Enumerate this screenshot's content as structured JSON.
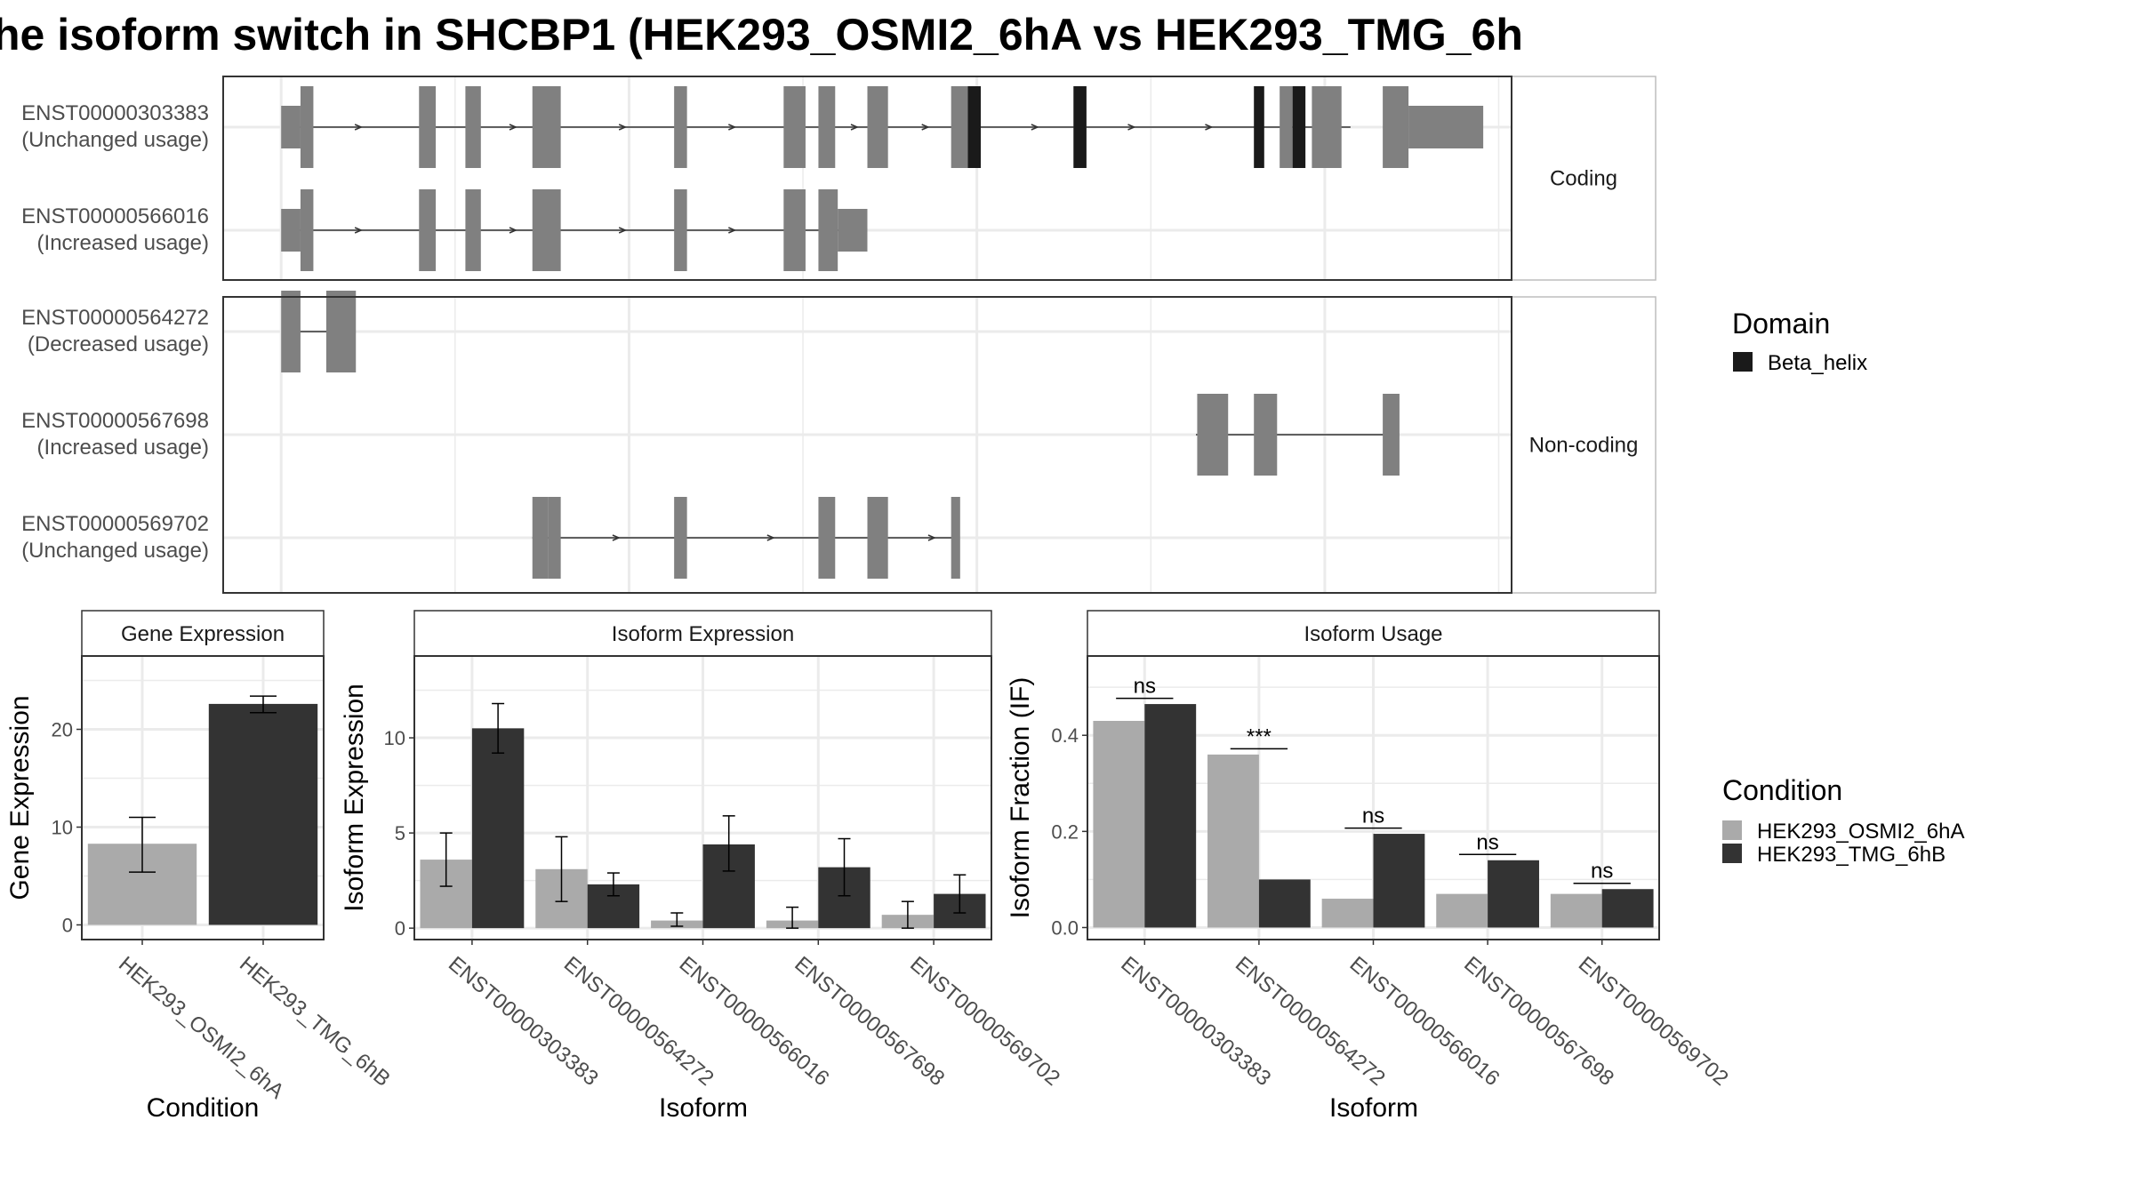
{
  "title": "he isoform switch in SHCBP1 (HEK293_OSMI2_6hA vs HEK293_TMG_6h",
  "colors": {
    "exon": "#808080",
    "domain": "#1a1a1a",
    "condition_a": "#aaaaaa",
    "condition_b": "#333333",
    "grid": "#ebebeb",
    "panel_border": "#333333",
    "strip_border": "#bdbdbd"
  },
  "structure": {
    "groups": [
      {
        "label": "Coding",
        "transcripts": [
          {
            "id": "ENST00000303383",
            "usage": "(Unchanged usage)",
            "line": [
              0.05,
              0.875
            ],
            "exons": [
              [
                0.045,
                0.06,
                "utr"
              ],
              [
                0.06,
                0.07,
                "cds"
              ],
              [
                0.152,
                0.165,
                "cds"
              ],
              [
                0.188,
                0.2,
                "cds"
              ],
              [
                0.24,
                0.262,
                "cds"
              ],
              [
                0.35,
                0.36,
                "cds"
              ],
              [
                0.435,
                0.452,
                "cds"
              ],
              [
                0.462,
                0.475,
                "cds"
              ],
              [
                0.5,
                0.516,
                "cds"
              ],
              [
                0.565,
                0.588,
                "cds"
              ],
              [
                0.66,
                0.67,
                "cds"
              ],
              [
                0.82,
                0.83,
                "cds"
              ],
              [
                0.845,
                0.868,
                "cds"
              ],
              [
                0.9,
                0.92,
                "cds"
              ],
              [
                0.92,
                0.978,
                "utr"
              ]
            ],
            "domains": [
              [
                0.578,
                0.588
              ],
              [
                0.66,
                0.67
              ],
              [
                0.8,
                0.808
              ],
              [
                0.83,
                0.84
              ]
            ],
            "arrows": [
              0.105,
              0.225,
              0.31,
              0.395,
              0.49,
              0.545,
              0.63,
              0.705,
              0.765
            ]
          },
          {
            "id": "ENST00000566016",
            "usage": "(Increased usage)",
            "line": [
              0.05,
              0.5
            ],
            "exons": [
              [
                0.045,
                0.06,
                "utr"
              ],
              [
                0.06,
                0.07,
                "cds"
              ],
              [
                0.152,
                0.165,
                "cds"
              ],
              [
                0.188,
                0.2,
                "cds"
              ],
              [
                0.24,
                0.262,
                "cds"
              ],
              [
                0.35,
                0.36,
                "cds"
              ],
              [
                0.435,
                0.452,
                "cds"
              ],
              [
                0.462,
                0.477,
                "cds"
              ],
              [
                0.477,
                0.5,
                "utr"
              ]
            ],
            "domains": [],
            "arrows": [
              0.105,
              0.225,
              0.31,
              0.395
            ]
          }
        ]
      },
      {
        "label": "Non-coding",
        "transcripts": [
          {
            "id": "ENST00000564272",
            "usage": "(Decreased usage)",
            "line": [
              0.055,
              0.1
            ],
            "exons": [
              [
                0.045,
                0.06,
                "nc"
              ],
              [
                0.08,
                0.103,
                "nc"
              ]
            ],
            "domains": [],
            "arrows": []
          },
          {
            "id": "ENST00000567698",
            "usage": "(Increased usage)",
            "line": [
              0.755,
              0.905
            ],
            "exons": [
              [
                0.756,
                0.78,
                "nc"
              ],
              [
                0.8,
                0.818,
                "nc"
              ],
              [
                0.9,
                0.913,
                "nc"
              ]
            ],
            "domains": [],
            "arrows": []
          },
          {
            "id": "ENST00000569702",
            "usage": "(Unchanged usage)",
            "line": [
              0.24,
              0.57
            ],
            "exons": [
              [
                0.24,
                0.252,
                "nc"
              ],
              [
                0.252,
                0.262,
                "nc"
              ],
              [
                0.35,
                0.36,
                "nc"
              ],
              [
                0.462,
                0.475,
                "nc"
              ],
              [
                0.5,
                0.516,
                "nc"
              ],
              [
                0.565,
                0.572,
                "nc"
              ]
            ],
            "domains": [],
            "arrows": [
              0.305,
              0.425,
              0.55
            ]
          }
        ]
      }
    ]
  },
  "legend_domain": {
    "title": "Domain",
    "items": [
      "Beta_helix"
    ]
  },
  "legend_condition": {
    "title": "Condition",
    "items": [
      "HEK293_OSMI2_6hA",
      "HEK293_TMG_6hB"
    ]
  },
  "chart_data": [
    {
      "type": "bar",
      "title": "Gene Expression",
      "xlabel": "Condition",
      "ylabel": "Gene Expression",
      "categories": [
        "HEK293_OSMI2_6hA",
        "HEK293_TMG_6hB"
      ],
      "values": [
        8.3,
        22.6
      ],
      "errors": [
        [
          5.4,
          11.0
        ],
        [
          21.7,
          23.4
        ]
      ],
      "ylim": [
        -1.5,
        27.5
      ],
      "yticks": [
        0,
        10,
        20
      ]
    },
    {
      "type": "bar",
      "title": "Isoform Expression",
      "xlabel": "Isoform",
      "ylabel": "Isoform Expression",
      "categories": [
        "ENST00000303383",
        "ENST00000564272",
        "ENST00000566016",
        "ENST00000567698",
        "ENST00000569702"
      ],
      "series": [
        {
          "name": "HEK293_OSMI2_6hA",
          "values": [
            3.6,
            3.1,
            0.4,
            0.4,
            0.7
          ],
          "errors": [
            [
              2.2,
              5.0
            ],
            [
              1.4,
              4.8
            ],
            [
              0.1,
              0.8
            ],
            [
              0.0,
              1.1
            ],
            [
              0.0,
              1.4
            ]
          ]
        },
        {
          "name": "HEK293_TMG_6hB",
          "values": [
            10.5,
            2.3,
            4.4,
            3.2,
            1.8
          ],
          "errors": [
            [
              9.2,
              11.8
            ],
            [
              1.7,
              2.9
            ],
            [
              3.0,
              5.9
            ],
            [
              1.7,
              4.7
            ],
            [
              0.8,
              2.8
            ]
          ]
        }
      ],
      "ylim": [
        -0.6,
        14.3
      ],
      "yticks": [
        0,
        5,
        10
      ]
    },
    {
      "type": "bar",
      "title": "Isoform Usage",
      "xlabel": "Isoform",
      "ylabel": "Isoform Fraction (IF)",
      "categories": [
        "ENST00000303383",
        "ENST00000564272",
        "ENST00000566016",
        "ENST00000567698",
        "ENST00000569702"
      ],
      "series": [
        {
          "name": "HEK293_OSMI2_6hA",
          "values": [
            0.43,
            0.36,
            0.06,
            0.07,
            0.07
          ]
        },
        {
          "name": "HEK293_TMG_6hB",
          "values": [
            0.465,
            0.1,
            0.195,
            0.14,
            0.08
          ]
        }
      ],
      "significance": [
        "ns",
        "***",
        "ns",
        "ns",
        "ns"
      ],
      "ylim": [
        -0.025,
        0.565
      ],
      "yticks": [
        0.0,
        0.2,
        0.4
      ],
      "ytick_labels": [
        "0.0",
        "0.2",
        "0.4"
      ]
    }
  ]
}
